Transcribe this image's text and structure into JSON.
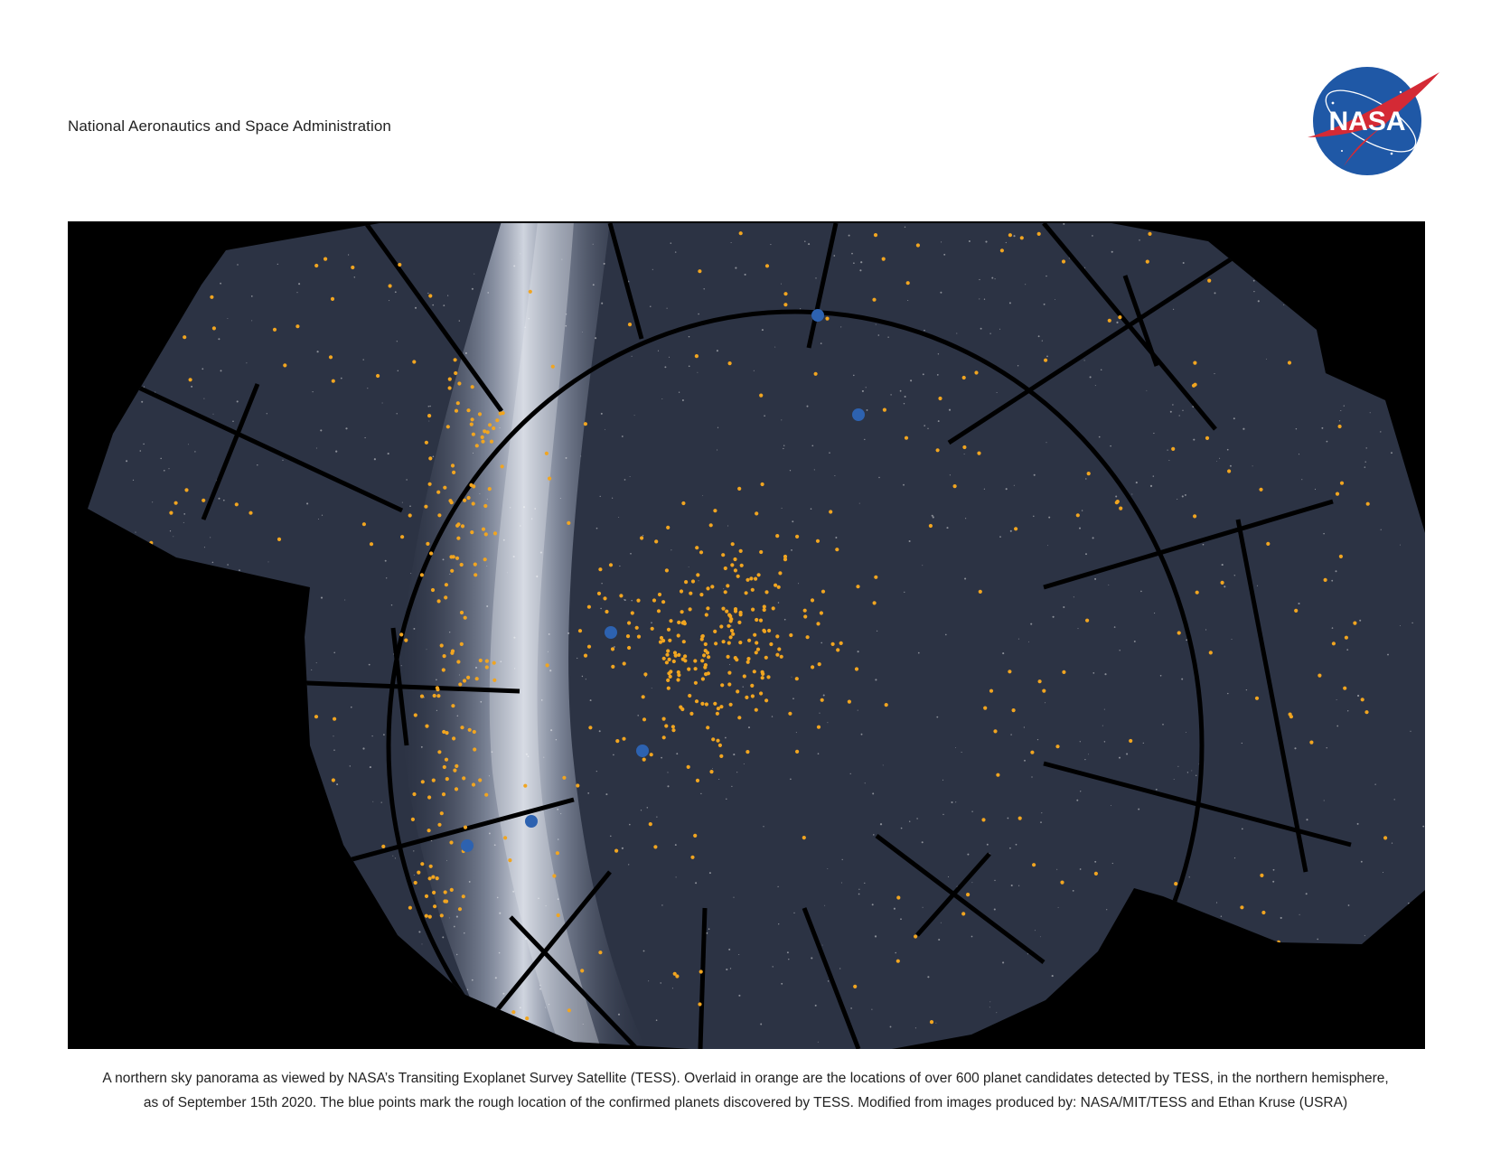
{
  "header": {
    "agency": "National Aeronautics and Space Administration",
    "logo_text": "NASA",
    "logo_colors": {
      "disc": "#1f58a6",
      "swoosh": "#d42a35",
      "text": "#ffffff"
    }
  },
  "figure": {
    "colors": {
      "background": "#000000",
      "sky": "#2c3344",
      "milky_way": "#c3c9d6",
      "candidate": "#f1a520",
      "confirmed": "#2d62b0"
    }
  },
  "caption": {
    "line1": "A northern sky panorama as viewed by NASA’s Transiting Exoplanet Survey Satellite (TESS). Overlaid in orange are the locations of over 600 planet candidates detected by TESS, in the northern hemisphere,",
    "line2": "as of September 15th 2020. The blue points mark the rough location of the confirmed planets discovered by TESS. Modified from images produced by: NASA/MIT/TESS and Ethan Kruse (USRA)"
  }
}
